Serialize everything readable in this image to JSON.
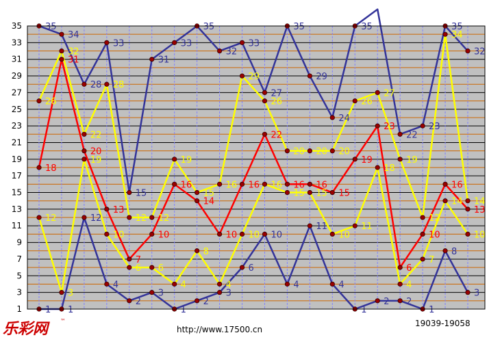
{
  "brand": {
    "logo_text": "乐彩网",
    "trademark": "™"
  },
  "footer": {
    "url": "http://www.17500.cn",
    "issue_range": "19039-19058"
  },
  "chart_data": {
    "type": "line",
    "title": "",
    "xlabel": "",
    "ylabel": "",
    "ylim": [
      1,
      35
    ],
    "yticks": [
      1,
      3,
      5,
      7,
      9,
      11,
      13,
      15,
      17,
      19,
      21,
      23,
      25,
      27,
      29,
      31,
      33,
      35
    ],
    "x": [
      1,
      2,
      3,
      4,
      5,
      6,
      7,
      8,
      9,
      10,
      11,
      12,
      13,
      14,
      15,
      16,
      17,
      18,
      19,
      20
    ],
    "grid": true,
    "background": "#c0c0c0",
    "series": [
      {
        "color": "#333399",
        "label_color": "#333399",
        "values": [
          35,
          34,
          28,
          33,
          15,
          31,
          33,
          35,
          32,
          33,
          27,
          35,
          29,
          24,
          35,
          37,
          22,
          23,
          35,
          32
        ]
      },
      {
        "color": "#ffff00",
        "label_color": "#ffff00",
        "values": [
          26,
          32,
          22,
          28,
          12,
          12,
          19,
          15,
          16,
          29,
          26,
          20,
          20,
          20,
          26,
          27,
          19,
          12,
          34,
          14
        ]
      },
      {
        "color": "#ff0000",
        "label_color": "#ff0000",
        "values": [
          18,
          31,
          20,
          13,
          7,
          10,
          16,
          14,
          10,
          16,
          22,
          16,
          16,
          15,
          19,
          23,
          6,
          10,
          16,
          13
        ]
      },
      {
        "color": "#ffff00",
        "label_color": "#ffff00",
        "values": [
          12,
          3,
          19,
          10,
          6,
          6,
          4,
          8,
          4,
          10,
          16,
          15,
          15,
          10,
          11,
          18,
          4,
          7,
          14,
          10
        ]
      },
      {
        "color": "#333399",
        "label_color": "#333399",
        "values": [
          1,
          1,
          12,
          4,
          2,
          3,
          1,
          2,
          3,
          6,
          10,
          4,
          11,
          4,
          1,
          2,
          2,
          1,
          8,
          3
        ]
      }
    ]
  }
}
